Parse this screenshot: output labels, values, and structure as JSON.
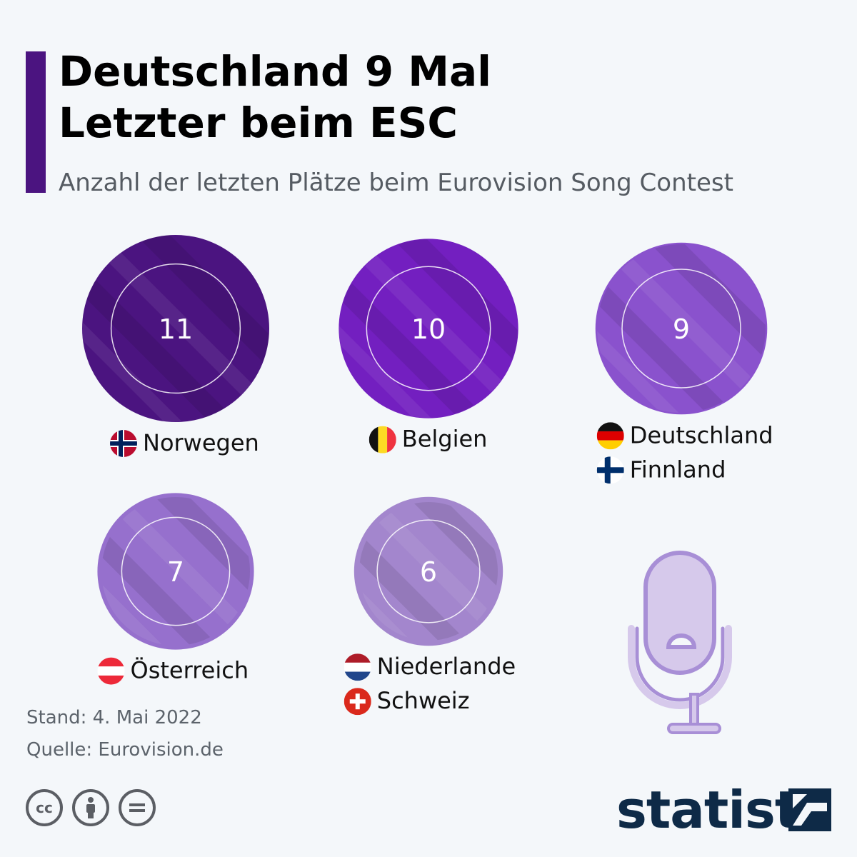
{
  "header": {
    "title_line1": "Deutschland 9 Mal",
    "title_line2": "Letzter beim ESC",
    "subtitle": "Anzahl der letzten Plätze beim Eurovision Song Contest"
  },
  "chart_data": {
    "type": "bubble",
    "title": "Deutschland 9 Mal Letzter beim ESC",
    "subtitle": "Anzahl der letzten Plätze beim Eurovision Song Contest",
    "items": [
      {
        "value": 11,
        "countries": [
          "Norwegen"
        ],
        "flags": [
          "norway-flag-icon"
        ],
        "color": "#4b1480"
      },
      {
        "value": 10,
        "countries": [
          "Belgien"
        ],
        "flags": [
          "belgium-flag-icon"
        ],
        "color": "#731fc0"
      },
      {
        "value": 9,
        "countries": [
          "Deutschland",
          "Finnland"
        ],
        "flags": [
          "germany-flag-icon",
          "finland-flag-icon"
        ],
        "color": "#8a52cd"
      },
      {
        "value": 7,
        "countries": [
          "Österreich"
        ],
        "flags": [
          "austria-flag-icon"
        ],
        "color": "#9670cd"
      },
      {
        "value": 6,
        "countries": [
          "Niederlande",
          "Schweiz"
        ],
        "flags": [
          "netherlands-flag-icon",
          "switzerland-flag-icon"
        ],
        "color": "#a386cd"
      }
    ]
  },
  "footer": {
    "stand": "Stand: 4. Mai 2022",
    "source": "Quelle: Eurovision.de",
    "brand": "statista",
    "license_icons": [
      "cc-icon",
      "by-icon",
      "nd-icon"
    ]
  },
  "decor": {
    "illustration": "microphone-icon"
  }
}
